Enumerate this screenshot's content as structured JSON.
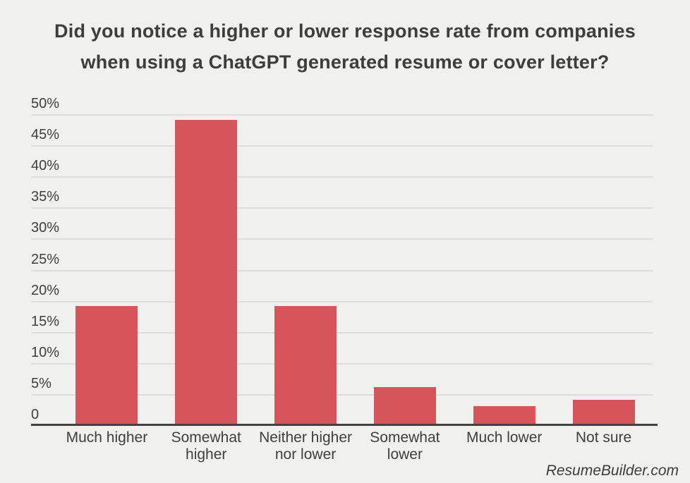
{
  "title": {
    "lines": [
      "Did you notice a higher or lower response rate from companies",
      "when using a ChatGPT generated resume or cover letter?"
    ]
  },
  "footer": {
    "attribution": "ResumeBuilder.com"
  },
  "colors": {
    "background": "#f0f0ee",
    "bar": "#d6555b",
    "gridline": "#dddddb",
    "axis": "#424242",
    "text": "#3e3e3e"
  },
  "chart_data": {
    "type": "bar",
    "title": "Did you notice a higher or lower response rate from companies when using a ChatGPT generated resume or cover letter?",
    "categories": [
      "Much higher",
      "Somewhat higher",
      "Neither higher nor lower",
      "Somewhat lower",
      "Much lower",
      "Not sure"
    ],
    "values": [
      19,
      49,
      19,
      6,
      3,
      4
    ],
    "unit": "%",
    "xlabel": "",
    "ylabel": "",
    "ylim": [
      0,
      50
    ],
    "y_tick_step": 5,
    "y_tick_labels": [
      "50%",
      "45%",
      "40%",
      "35%",
      "30%",
      "25%",
      "20%",
      "15%",
      "10%",
      "5%",
      "0"
    ],
    "grid": true,
    "legend": false,
    "bar_color": "#d6555b"
  }
}
